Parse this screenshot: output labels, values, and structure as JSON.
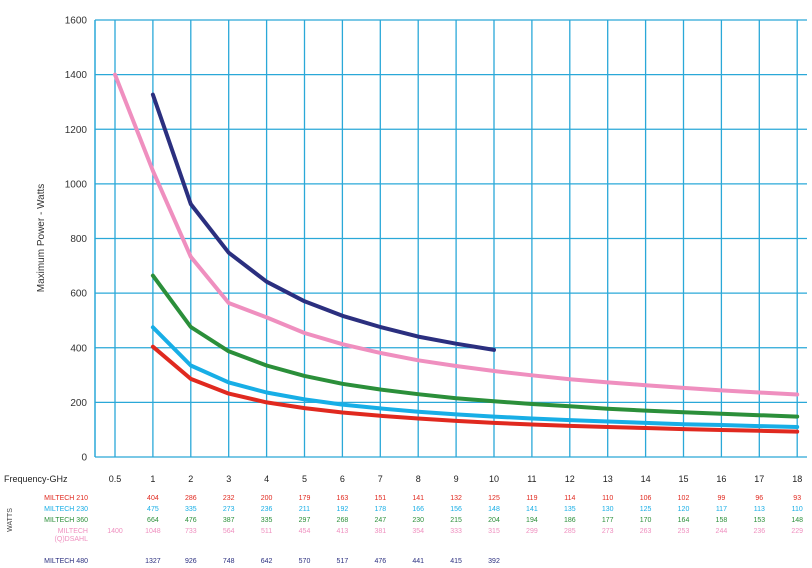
{
  "chart_data": {
    "type": "line",
    "ylabel": "Maximum Power - Watts",
    "table_title": "WATTS",
    "freq_label": "Frequency-GHz",
    "x": [
      "0.5",
      "1",
      "2",
      "3",
      "4",
      "5",
      "6",
      "7",
      "8",
      "9",
      "10",
      "11",
      "12",
      "13",
      "14",
      "15",
      "16",
      "17",
      "18"
    ],
    "ylim": [
      0,
      1600
    ],
    "yticks": [
      0,
      200,
      400,
      600,
      800,
      1000,
      1200,
      1400,
      1600
    ],
    "grid": true,
    "series": [
      {
        "name": "MILTECH 210",
        "color": "#e0291f",
        "values": [
          null,
          404,
          286,
          232,
          200,
          179,
          163,
          151,
          141,
          132,
          125,
          119,
          114,
          110,
          106,
          102,
          99,
          96,
          93
        ]
      },
      {
        "name": "MILTECH 230",
        "color": "#18aee6",
        "values": [
          null,
          475,
          335,
          273,
          236,
          211,
          192,
          178,
          166,
          156,
          148,
          141,
          135,
          130,
          125,
          120,
          117,
          113,
          110
        ]
      },
      {
        "name": "MILTECH 360",
        "color": "#2b8f3a",
        "values": [
          null,
          664,
          476,
          387,
          335,
          297,
          268,
          247,
          230,
          215,
          204,
          194,
          186,
          177,
          170,
          164,
          158,
          153,
          148
        ]
      },
      {
        "name": "MILTECH",
        "name2": "(Q)DSAHL",
        "color": "#ef8fbf",
        "values": [
          1400,
          1048,
          733,
          564,
          511,
          454,
          413,
          381,
          354,
          333,
          315,
          299,
          285,
          273,
          263,
          253,
          244,
          236,
          229
        ]
      },
      {
        "name": "MILTECH 480",
        "color": "#2b2f7f",
        "values": [
          null,
          1327,
          926,
          748,
          642,
          570,
          517,
          476,
          441,
          415,
          392,
          null,
          null,
          null,
          null,
          null,
          null,
          null,
          null
        ]
      }
    ]
  }
}
